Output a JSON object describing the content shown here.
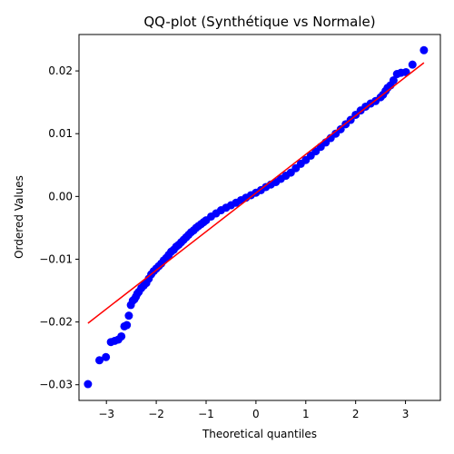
{
  "chart_data": {
    "type": "scatter",
    "title": "QQ-plot (Synthétique vs Normale)",
    "xlabel": "Theoretical quantiles",
    "ylabel": "Ordered Values",
    "xlim": [
      -3.55,
      3.7
    ],
    "ylim": [
      -0.0325,
      0.0258
    ],
    "grid": false,
    "x_ticks": [
      -3,
      -2,
      -1,
      0,
      1,
      2,
      3
    ],
    "x_tick_labels": [
      "−3",
      "−2",
      "−1",
      "0",
      "1",
      "2",
      "3"
    ],
    "y_ticks": [
      -0.03,
      -0.02,
      -0.01,
      0.0,
      0.01,
      0.02
    ],
    "y_tick_labels": [
      "−0.03",
      "−0.02",
      "−0.01",
      "0.00",
      "0.01",
      "0.02"
    ],
    "point_color": "#0000ff",
    "line_color": "#ff0000",
    "series": [
      {
        "kind": "points",
        "x": [
          -3.37,
          -3.14,
          -3.01,
          -2.91,
          -2.83,
          -2.76,
          -2.7,
          -2.64,
          -2.59,
          -2.55,
          -2.51,
          -2.47,
          -2.44,
          -2.41,
          -2.38,
          -2.35,
          -2.3,
          -2.25,
          -2.2,
          -2.15,
          -2.1,
          -2.05,
          -2.0,
          -1.95,
          -1.9,
          -1.85,
          -1.8,
          -1.75,
          -1.7,
          -1.65,
          -1.6,
          -1.55,
          -1.5,
          -1.45,
          -1.4,
          -1.35,
          -1.3,
          -1.25,
          -1.2,
          -1.15,
          -1.1,
          -1.05,
          -1.0,
          -0.9,
          -0.8,
          -0.7,
          -0.6,
          -0.5,
          -0.4,
          -0.3,
          -0.2,
          -0.1,
          0.0,
          0.1,
          0.2,
          0.3,
          0.4,
          0.5,
          0.6,
          0.7,
          0.8,
          0.9,
          1.0,
          1.1,
          1.2,
          1.3,
          1.4,
          1.5,
          1.6,
          1.7,
          1.8,
          1.9,
          2.0,
          2.1,
          2.2,
          2.3,
          2.4,
          2.5,
          2.55,
          2.6,
          2.64,
          2.7,
          2.76,
          2.83,
          2.91,
          3.01,
          3.14,
          3.37
        ],
        "y": [
          -0.0299,
          -0.0261,
          -0.0256,
          -0.0232,
          -0.023,
          -0.0228,
          -0.0223,
          -0.0207,
          -0.0205,
          -0.019,
          -0.0173,
          -0.0166,
          -0.0164,
          -0.016,
          -0.0155,
          -0.0152,
          -0.0146,
          -0.0142,
          -0.0138,
          -0.0131,
          -0.0124,
          -0.0119,
          -0.0115,
          -0.0111,
          -0.0107,
          -0.0102,
          -0.0098,
          -0.0093,
          -0.0088,
          -0.0085,
          -0.008,
          -0.0077,
          -0.0073,
          -0.0069,
          -0.0065,
          -0.0061,
          -0.0057,
          -0.0054,
          -0.005,
          -0.0047,
          -0.0044,
          -0.0041,
          -0.0038,
          -0.0032,
          -0.0027,
          -0.0022,
          -0.0018,
          -0.0014,
          -0.001,
          -0.0006,
          -0.0002,
          0.0002,
          0.0006,
          0.001,
          0.0015,
          0.0019,
          0.0023,
          0.0028,
          0.0033,
          0.0038,
          0.0045,
          0.0052,
          0.0058,
          0.0065,
          0.0072,
          0.0079,
          0.0086,
          0.0093,
          0.01,
          0.0107,
          0.0115,
          0.0122,
          0.013,
          0.0137,
          0.0143,
          0.0148,
          0.0152,
          0.0158,
          0.0162,
          0.0168,
          0.0173,
          0.0177,
          0.0185,
          0.0195,
          0.0197,
          0.0198,
          0.021,
          0.0233
        ]
      },
      {
        "kind": "line",
        "x": [
          -3.37,
          3.37
        ],
        "y": [
          -0.0202,
          0.0213
        ]
      }
    ]
  }
}
